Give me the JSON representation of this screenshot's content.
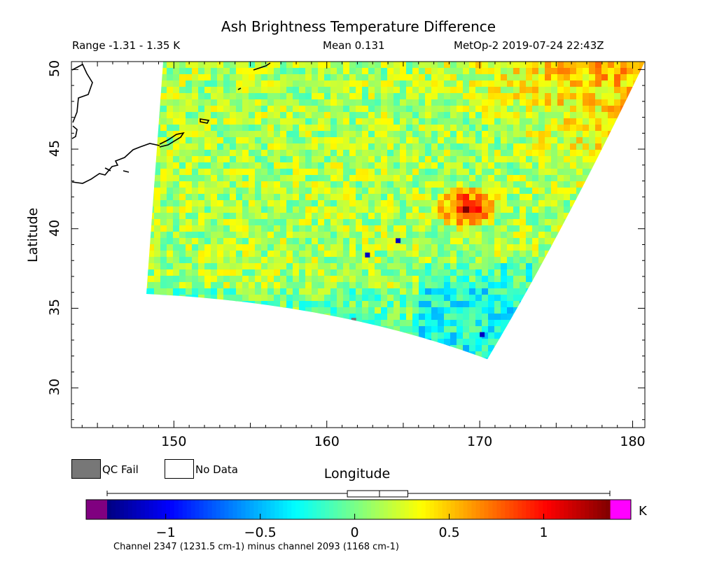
{
  "header": {
    "title": "Ash Brightness Temperature Difference",
    "range": "Range -1.31 - 1.35 K",
    "mean": "Mean 0.131",
    "satellite": "MetOp-2 2019-07-24 22:43Z"
  },
  "legend": {
    "qc_fail": "QC Fail",
    "no_data": "No Data"
  },
  "colorbar": {
    "units": "K",
    "caption": "Channel 2347 (1231.5 cm-1) minus channel 2093 (1168 cm-1)",
    "min": -1.31,
    "max": 1.35,
    "mean": 0.131,
    "colors": [
      "#000080",
      "#0000ff",
      "#0080ff",
      "#00ffff",
      "#80ff80",
      "#ffff00",
      "#ff8000",
      "#ff0000",
      "#800000"
    ],
    "below_color": "#800080",
    "above_color": "#ff00ff",
    "tick_labels": [
      "−1",
      "−0.5",
      "0",
      "0.5",
      "1"
    ],
    "tick_values": [
      -1,
      -0.5,
      0,
      0.5,
      1
    ]
  },
  "chart_data": {
    "type": "heatmap",
    "title": "Ash Brightness Temperature Difference",
    "xlabel": "Longitude",
    "ylabel": "Latitude",
    "xlim": [
      143.3,
      180.8
    ],
    "ylim": [
      27.5,
      50.5
    ],
    "x_ticks": [
      150,
      160,
      170,
      180
    ],
    "y_ticks": [
      30,
      35,
      40,
      45,
      50
    ],
    "grid": false,
    "swath_corners": [
      [
        149.3,
        50.5
      ],
      [
        180.8,
        50.5
      ],
      [
        170.5,
        31.8
      ],
      [
        148.2,
        35.9
      ]
    ],
    "hotspot": {
      "lon": 169,
      "lat": 41.5,
      "value": 1.2
    },
    "cold_spots": [
      [
        164.5,
        39.4
      ],
      [
        162.5,
        38.5
      ],
      [
        170,
        33.5
      ]
    ],
    "value_range": [
      -1.31,
      1.35
    ],
    "mean": 0.131
  }
}
